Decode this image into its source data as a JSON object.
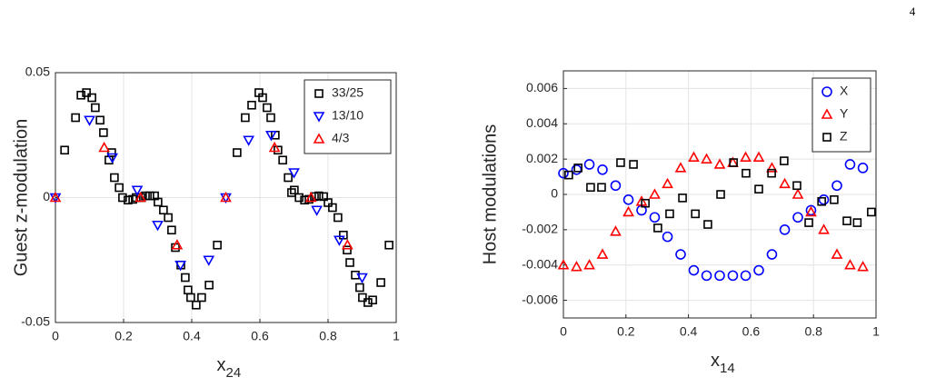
{
  "page_number": "4",
  "chart_data": [
    {
      "type": "scatter",
      "ylabel": "Guest z-modulation",
      "xlabel": "x",
      "xlabel_subscript": "24",
      "xlim": [
        0,
        1
      ],
      "xticks": [
        0,
        0.2,
        0.4,
        0.6,
        0.8,
        1
      ],
      "ylim": [
        -0.05,
        0.05
      ],
      "yticks": [
        -0.05,
        0,
        0.05
      ],
      "grid": true,
      "legend": "upper right",
      "series": [
        {
          "name": "33/25",
          "color": "#000000",
          "marker": "square",
          "x": [
            0.027,
            0.059,
            0.075,
            0.091,
            0.107,
            0.117,
            0.131,
            0.141,
            0.157,
            0.165,
            0.173,
            0.187,
            0.197,
            0.213,
            0.227,
            0.237,
            0.251,
            0.264,
            0.277,
            0.291,
            0.301,
            0.317,
            0.331,
            0.341,
            0.352,
            0.368,
            0.381,
            0.389,
            0.397,
            0.413,
            0.429,
            0.451,
            0.475,
            0.533,
            0.557,
            0.576,
            0.597,
            0.608,
            0.621,
            0.632,
            0.645,
            0.653,
            0.667,
            0.683,
            0.693,
            0.701,
            0.715,
            0.731,
            0.744,
            0.76,
            0.773,
            0.787,
            0.8,
            0.813,
            0.829,
            0.845,
            0.856,
            0.864,
            0.88,
            0.893,
            0.901,
            0.917,
            0.931,
            0.955,
            0.979
          ],
          "values": [
            0.019,
            0.032,
            0.041,
            0.042,
            0.04,
            0.036,
            0.031,
            0.026,
            0.015,
            0.018,
            0.008,
            0.004,
            0,
            -0.001,
            -0.0007,
            0,
            0,
            0.0007,
            0.0007,
            0.0007,
            -0.0018,
            -0.005,
            -0.008,
            -0.013,
            -0.02,
            -0.027,
            -0.032,
            -0.037,
            -0.04,
            -0.043,
            -0.04,
            -0.035,
            -0.019,
            0.018,
            0.032,
            0.037,
            0.042,
            0.04,
            0.036,
            0.032,
            0.025,
            0.019,
            0.015,
            0.008,
            0.002,
            0.003,
            0,
            -0.001,
            -0.0007,
            0.0004,
            0.0007,
            0.0004,
            -0.002,
            -0.004,
            -0.008,
            -0.015,
            -0.021,
            -0.026,
            -0.031,
            -0.036,
            -0.04,
            -0.042,
            -0.041,
            -0.034,
            -0.019
          ]
        },
        {
          "name": "13/10",
          "color": "#0000ff",
          "marker": "triangle-down",
          "x": [
            0,
            0.1,
            0.167,
            0.24,
            0.3,
            0.367,
            0.45,
            0.5,
            0.567,
            0.633,
            0.7,
            0.767,
            0.833,
            0.9
          ],
          "values": [
            0,
            0.031,
            0.016,
            0.003,
            -0.011,
            -0.027,
            -0.025,
            0,
            0.023,
            0.025,
            0.01,
            -0.005,
            -0.017,
            -0.032
          ]
        },
        {
          "name": "4/3",
          "color": "#ff0000",
          "marker": "triangle-up",
          "x": [
            0,
            0.143,
            0.25,
            0.357,
            0.5,
            0.643,
            0.75,
            0.857
          ],
          "values": [
            0,
            0.02,
            0,
            -0.019,
            0,
            0.02,
            0,
            -0.019
          ]
        }
      ]
    },
    {
      "type": "scatter",
      "ylabel": "Host modulations",
      "xlabel": "x",
      "xlabel_subscript": "14",
      "xlim": [
        0,
        1
      ],
      "xticks": [
        0,
        0.2,
        0.4,
        0.6,
        0.8,
        1
      ],
      "ylim": [
        -0.007,
        0.007
      ],
      "yticks": [
        -0.006,
        -0.004,
        -0.002,
        0,
        0.002,
        0.004,
        0.006
      ],
      "grid": true,
      "legend": "upper right",
      "series": [
        {
          "name": "X",
          "color": "#0000ff",
          "marker": "circle",
          "x": [
            0,
            0.042,
            0.083,
            0.125,
            0.167,
            0.208,
            0.25,
            0.292,
            0.333,
            0.375,
            0.417,
            0.458,
            0.5,
            0.542,
            0.583,
            0.625,
            0.667,
            0.708,
            0.75,
            0.792,
            0.833,
            0.875,
            0.917,
            0.958
          ],
          "values": [
            0.0012,
            0.0014,
            0.0017,
            0.0014,
            0.0005,
            -0.0003,
            -0.0009,
            -0.0013,
            -0.0024,
            -0.0034,
            -0.0043,
            -0.0046,
            -0.0046,
            -0.0046,
            -0.0046,
            -0.0043,
            -0.0034,
            -0.002,
            -0.0013,
            -0.0009,
            -0.0003,
            0.0005,
            0.0017,
            0.0015
          ]
        },
        {
          "name": "Y",
          "color": "#ff0000",
          "marker": "triangle-up",
          "x": [
            0,
            0.042,
            0.083,
            0.125,
            0.167,
            0.208,
            0.25,
            0.292,
            0.333,
            0.375,
            0.417,
            0.458,
            0.5,
            0.542,
            0.583,
            0.625,
            0.667,
            0.708,
            0.75,
            0.792,
            0.833,
            0.875,
            0.917,
            0.958
          ],
          "values": [
            -0.004,
            -0.0041,
            -0.004,
            -0.0034,
            -0.0021,
            -0.001,
            -0.0004,
            0,
            0.0006,
            0.0015,
            0.0021,
            0.002,
            0.0017,
            0.0018,
            0.0021,
            0.0021,
            0.0015,
            0.0006,
            0,
            -0.001,
            -0.002,
            -0.0034,
            -0.004,
            -0.0041
          ]
        },
        {
          "name": "Z",
          "color": "#000000",
          "marker": "square",
          "x": [
            0.017,
            0.047,
            0.087,
            0.122,
            0.183,
            0.224,
            0.262,
            0.302,
            0.34,
            0.381,
            0.422,
            0.462,
            0.503,
            0.544,
            0.584,
            0.625,
            0.666,
            0.706,
            0.747,
            0.785,
            0.826,
            0.866,
            0.907,
            0.94,
            0.985
          ],
          "values": [
            0.0011,
            0.0015,
            0.0004,
            0.0004,
            0.0018,
            0.0017,
            -0.0005,
            -0.0019,
            -0.0011,
            -0.0002,
            -0.0011,
            -0.0017,
            0,
            0.0018,
            0.0012,
            0.0003,
            0.0012,
            0.0019,
            0.0005,
            -0.0016,
            -0.0004,
            -0.0003,
            -0.0015,
            -0.0016,
            -0.001
          ]
        }
      ]
    }
  ]
}
